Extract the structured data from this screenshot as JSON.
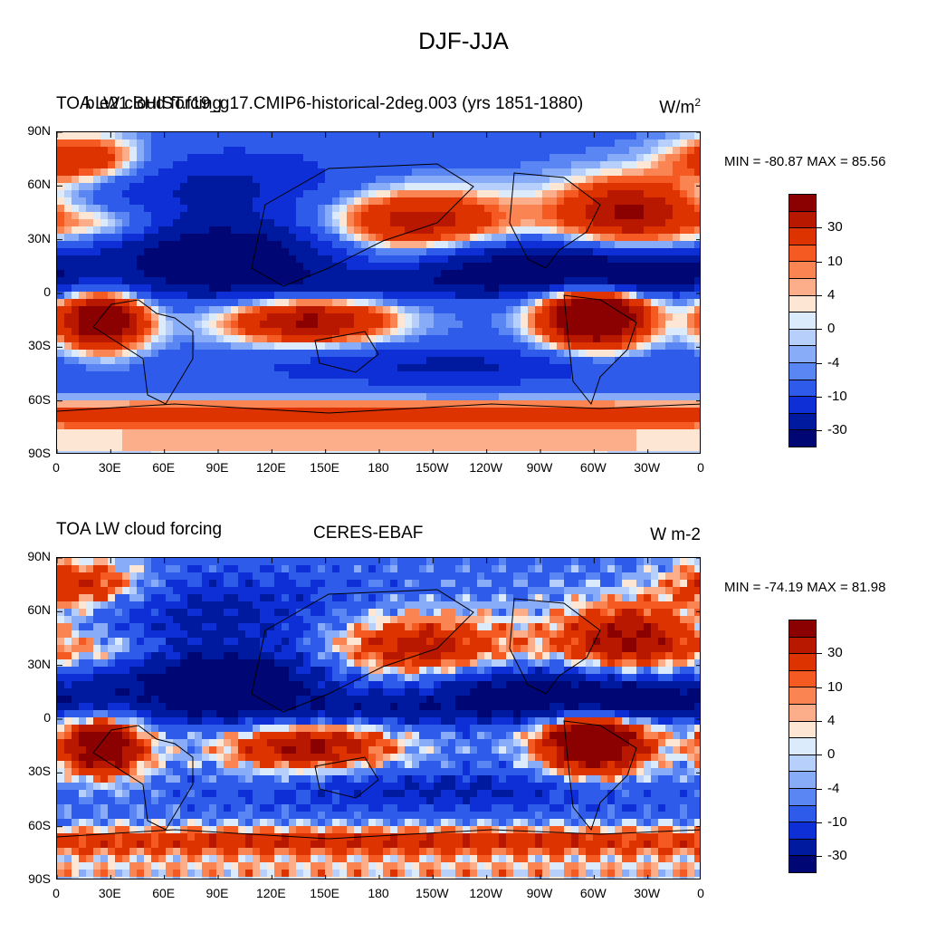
{
  "main_title": "DJF-JJA",
  "legend": {
    "colors": [
      "#8b0000",
      "#b81800",
      "#dd3300",
      "#f55a22",
      "#fa8552",
      "#fcae8a",
      "#fde6d4",
      "#dcebfb",
      "#b7cffb",
      "#89acf9",
      "#5a86f3",
      "#2e5bea",
      "#0d2fd5",
      "#001a9f",
      "#000673"
    ],
    "labels": [
      "30",
      "10",
      "4",
      "0",
      "-4",
      "-10",
      "-30"
    ]
  },
  "axes": {
    "lat_labels": [
      "90N",
      "60N",
      "30N",
      "0",
      "30S",
      "60S",
      "90S"
    ],
    "lon_labels": [
      "0",
      "30E",
      "60E",
      "90E",
      "120E",
      "150E",
      "180",
      "150W",
      "120W",
      "90W",
      "60W",
      "30W",
      "0"
    ]
  },
  "panels": [
    {
      "left_title": "TOA LW cloud forcing",
      "center_title": "b.e21.BHIST.f19_g17.CMIP6-historical-2deg.003 (yrs 1851-1880)",
      "right_title_base": "W/m",
      "right_title_sup": "2",
      "min_max": "MIN = -80.87 MAX =  85.56",
      "field": "model"
    },
    {
      "left_title": "TOA LW cloud forcing",
      "center_title": "CERES-EBAF",
      "right_title": "W m-2",
      "min_max": "MIN = -74.19 MAX =  81.98",
      "field": "obs"
    }
  ]
}
